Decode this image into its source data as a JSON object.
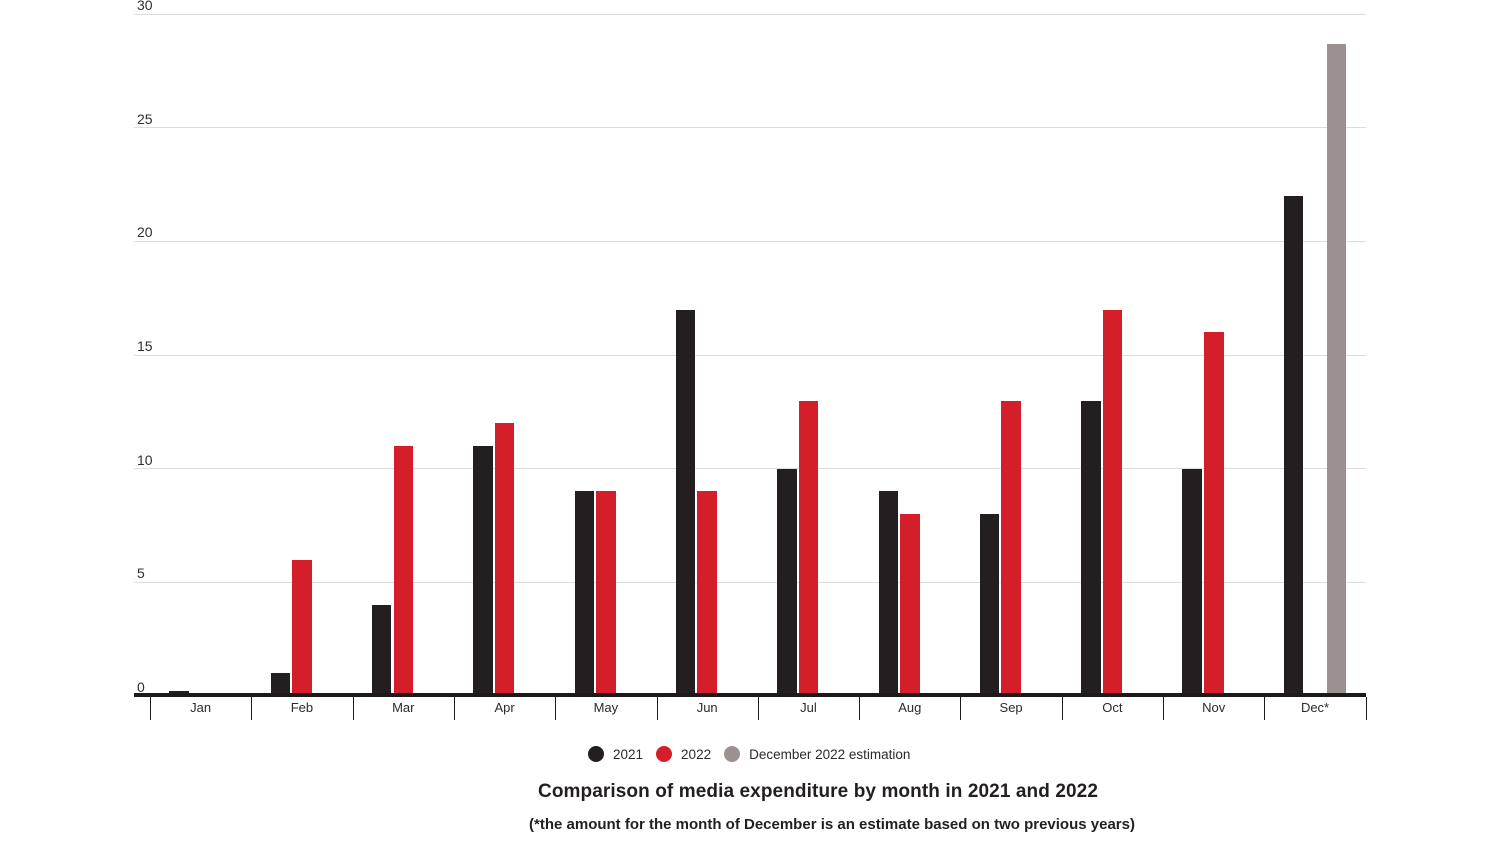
{
  "title": "Comparison of media expenditure by month in 2021 and 2022",
  "subtitle": "(*the amount for the month of December is an estimate based on two previous years)",
  "legend": [
    {
      "label": "2021",
      "color": "#231f20"
    },
    {
      "label": "2022",
      "color": "#d41f2a"
    },
    {
      "label": "December 2022 estimation",
      "color": "#9a9190"
    }
  ],
  "chart_data": {
    "type": "bar",
    "title": "Comparison of media expenditure by month in 2021 and 2022",
    "note": "(*the amount for the month of December is an estimate based on two previous years)",
    "categories": [
      "Jan",
      "Feb",
      "Mar",
      "Apr",
      "May",
      "Jun",
      "Jul",
      "Aug",
      "Sep",
      "Oct",
      "Nov",
      "Dec*"
    ],
    "series": [
      {
        "name": "2021",
        "color": "#231f20",
        "values": [
          0.2,
          1,
          4,
          11,
          9,
          17,
          10,
          9,
          8,
          13,
          10,
          22
        ]
      },
      {
        "name": "2022",
        "color": "#d41f2a",
        "values": [
          0.15,
          6,
          11,
          12,
          9,
          9,
          13,
          8,
          13,
          17,
          16,
          0
        ]
      },
      {
        "name": "December 2022 estimation",
        "color": "#9a9190",
        "values": [
          0,
          0,
          0,
          0,
          0,
          0,
          0,
          0,
          0,
          0,
          0,
          28.7
        ]
      }
    ],
    "yticks": [
      0,
      5,
      10,
      15,
      20,
      25,
      30
    ],
    "ylim": [
      0,
      30
    ],
    "grid": true,
    "legend_position": "bottom"
  }
}
